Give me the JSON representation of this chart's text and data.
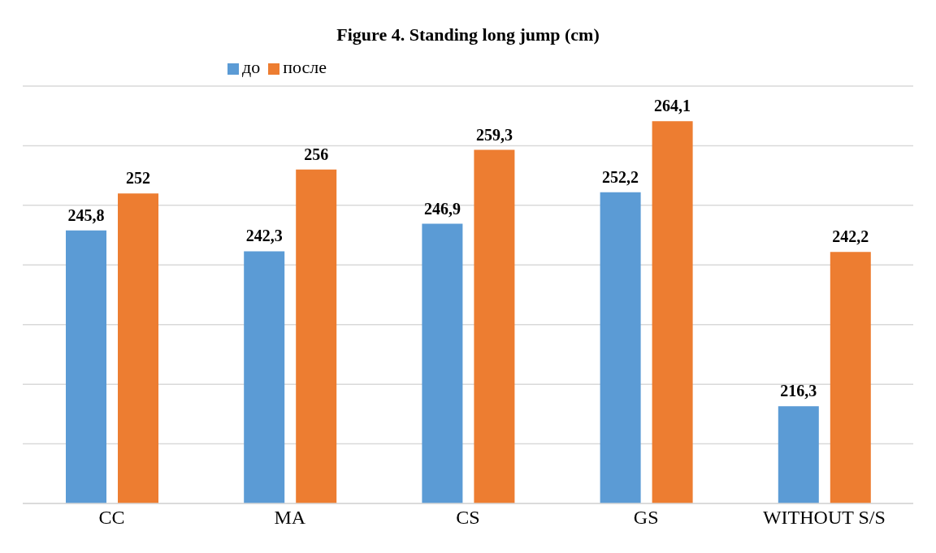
{
  "chart_data": {
    "type": "bar",
    "title": "Figure 4. Standing long jump (cm)",
    "categories": [
      "CC",
      "MA",
      "CS",
      "GS",
      "WITHOUT S/S"
    ],
    "series": [
      {
        "name": "до",
        "color": "#5b9bd5",
        "values": [
          245.8,
          242.3,
          246.9,
          252.2,
          216.3
        ],
        "value_labels": [
          "245,8",
          "242,3",
          "246,9",
          "252,2",
          "216,3"
        ]
      },
      {
        "name": "после",
        "color": "#ed7d31",
        "values": [
          252,
          256,
          259.3,
          264.1,
          242.2
        ],
        "value_labels": [
          "252",
          "256",
          "259,3",
          "264,1",
          "242,2"
        ]
      }
    ],
    "ylim": [
      200,
      270
    ],
    "tick_labels": "x",
    "grid": "y",
    "legend": "top"
  }
}
